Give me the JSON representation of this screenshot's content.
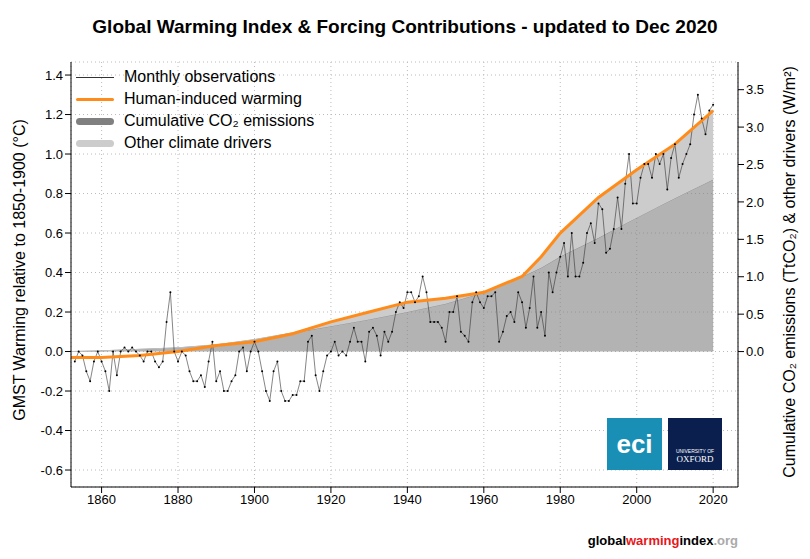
{
  "chart_data": {
    "type": "line",
    "title": "Global Warming Index & Forcing Contributions - updated to Dec 2020",
    "y_label": "GMST Warming relative to 1850-1900 (°C)",
    "y2_label": "Cumulative CO₂ emissions (TtCO₂) & other drivers (W/m²)",
    "xlim": [
      1852,
      2026.5
    ],
    "xticks": [
      1860,
      1880,
      1900,
      1920,
      1940,
      1960,
      1980,
      2000,
      2020
    ],
    "ylim": [
      -0.686,
      1.466
    ],
    "yticks": [
      -0.6,
      -0.4,
      -0.2,
      {
        "value": 0,
        "label": "0.0"
      },
      0.2,
      0.4,
      0.6,
      0.8,
      {
        "value": 1,
        "label": "1.0"
      },
      1.2,
      1.4
    ],
    "y2lim": [
      -1.81,
      3.87
    ],
    "y2ticks": [
      {
        "value": 0,
        "label": "0.0"
      },
      0.5,
      {
        "value": 1,
        "label": "1.0"
      },
      1.5,
      {
        "value": 2,
        "label": "2.0"
      },
      2.5,
      {
        "value": 3,
        "label": "3.0"
      },
      3.5
    ],
    "grid": true,
    "legend": "top-left",
    "stacked": true,
    "series": [
      {
        "name": "Monthly observations",
        "type": "line",
        "marker": "dot",
        "color": "#333333",
        "x": [
          1853,
          1854,
          1855,
          1856,
          1857,
          1858,
          1859,
          1860,
          1861,
          1862,
          1863,
          1864,
          1865,
          1866,
          1867,
          1868,
          1869,
          1870,
          1871,
          1872,
          1873,
          1874,
          1875,
          1876,
          1877,
          1878,
          1879,
          1880,
          1881,
          1882,
          1883,
          1884,
          1885,
          1886,
          1887,
          1888,
          1889,
          1890,
          1891,
          1892,
          1893,
          1894,
          1895,
          1896,
          1897,
          1898,
          1899,
          1900,
          1901,
          1902,
          1903,
          1904,
          1905,
          1906,
          1907,
          1908,
          1909,
          1910,
          1911,
          1912,
          1913,
          1914,
          1915,
          1916,
          1917,
          1918,
          1919,
          1920,
          1921,
          1922,
          1923,
          1924,
          1925,
          1926,
          1927,
          1928,
          1929,
          1930,
          1931,
          1932,
          1933,
          1934,
          1935,
          1936,
          1937,
          1938,
          1939,
          1940,
          1941,
          1942,
          1943,
          1944,
          1945,
          1946,
          1947,
          1948,
          1949,
          1950,
          1951,
          1952,
          1953,
          1954,
          1955,
          1956,
          1957,
          1958,
          1959,
          1960,
          1961,
          1962,
          1963,
          1964,
          1965,
          1966,
          1967,
          1968,
          1969,
          1970,
          1971,
          1972,
          1973,
          1974,
          1975,
          1976,
          1977,
          1978,
          1979,
          1980,
          1981,
          1982,
          1983,
          1984,
          1985,
          1986,
          1987,
          1988,
          1989,
          1990,
          1991,
          1992,
          1993,
          1994,
          1995,
          1996,
          1997,
          1998,
          1999,
          2000,
          2001,
          2002,
          2003,
          2004,
          2005,
          2006,
          2007,
          2008,
          2009,
          2010,
          2011,
          2012,
          2013,
          2014,
          2015,
          2016,
          2017,
          2018,
          2019,
          2020
        ],
        "values": [
          -0.05,
          0.0,
          -0.02,
          -0.1,
          -0.15,
          -0.05,
          0.0,
          -0.05,
          -0.1,
          -0.2,
          0.0,
          -0.12,
          0.0,
          0.02,
          0.0,
          0.02,
          0.0,
          -0.02,
          -0.05,
          0.0,
          0.0,
          -0.05,
          -0.08,
          -0.05,
          0.15,
          0.3,
          0.0,
          -0.05,
          0.0,
          -0.02,
          -0.1,
          -0.15,
          -0.15,
          -0.12,
          -0.18,
          -0.05,
          0.05,
          -0.15,
          -0.1,
          -0.2,
          -0.2,
          -0.15,
          -0.12,
          0.0,
          0.02,
          -0.1,
          0.0,
          0.05,
          0.0,
          -0.1,
          -0.2,
          -0.25,
          -0.1,
          -0.05,
          -0.2,
          -0.25,
          -0.25,
          -0.22,
          -0.22,
          -0.15,
          -0.15,
          0.05,
          0.08,
          -0.12,
          -0.2,
          -0.1,
          -0.02,
          0.0,
          0.05,
          -0.02,
          0.0,
          -0.02,
          0.05,
          0.12,
          0.05,
          0.05,
          -0.05,
          0.1,
          0.12,
          0.08,
          -0.02,
          0.1,
          0.05,
          0.1,
          0.2,
          0.25,
          0.22,
          0.3,
          0.3,
          0.25,
          0.28,
          0.38,
          0.3,
          0.15,
          0.15,
          0.15,
          0.12,
          0.05,
          0.2,
          0.2,
          0.28,
          0.1,
          0.08,
          0.05,
          0.25,
          0.3,
          0.25,
          0.22,
          0.28,
          0.28,
          0.3,
          0.05,
          0.1,
          0.18,
          0.2,
          0.15,
          0.3,
          0.25,
          0.12,
          0.22,
          0.38,
          0.12,
          0.2,
          0.08,
          0.4,
          0.3,
          0.4,
          0.48,
          0.55,
          0.38,
          0.6,
          0.38,
          0.38,
          0.45,
          0.6,
          0.65,
          0.55,
          0.75,
          0.72,
          0.5,
          0.52,
          0.62,
          0.78,
          0.62,
          0.85,
          1.0,
          0.75,
          0.75,
          0.88,
          0.95,
          0.95,
          0.88,
          1.0,
          0.95,
          1.0,
          0.82,
          0.98,
          1.05,
          0.88,
          0.95,
          1.0,
          1.05,
          1.2,
          1.3,
          1.18,
          1.1,
          1.22,
          1.25
        ]
      },
      {
        "name": "Human-induced warming",
        "type": "line",
        "color": "#ff8c1a",
        "x": [
          1852,
          1860,
          1870,
          1880,
          1890,
          1900,
          1910,
          1920,
          1930,
          1940,
          1950,
          1960,
          1970,
          1975,
          1980,
          1990,
          2000,
          2010,
          2020
        ],
        "values": [
          -0.03,
          -0.03,
          -0.02,
          0.0,
          0.03,
          0.05,
          0.09,
          0.15,
          0.2,
          0.25,
          0.27,
          0.3,
          0.38,
          0.48,
          0.6,
          0.78,
          0.92,
          1.05,
          1.22
        ]
      },
      {
        "name": "Cumulative CO₂ emissions",
        "type": "area",
        "axis": "y2",
        "color": "#808080",
        "x": [
          1852,
          1860,
          1870,
          1880,
          1890,
          1900,
          1910,
          1920,
          1930,
          1940,
          1950,
          1960,
          1970,
          1975,
          1980,
          1990,
          2000,
          2010,
          2020
        ],
        "values": [
          0,
          0.01,
          0.03,
          0.05,
          0.09,
          0.16,
          0.25,
          0.34,
          0.43,
          0.53,
          0.64,
          0.79,
          1.0,
          1.12,
          1.27,
          1.52,
          1.79,
          2.05,
          2.3
        ]
      },
      {
        "name": "Other climate drivers",
        "type": "area",
        "axis": "y2",
        "color": "#cccccc",
        "x": [
          1852,
          1860,
          1870,
          1880,
          1890,
          1900,
          1910,
          1920,
          1930,
          1940,
          1950,
          1960,
          1970,
          1975,
          1980,
          1990,
          2000,
          2010,
          2020
        ],
        "values": [
          0,
          0,
          0,
          0,
          0,
          0,
          0,
          0.06,
          0.1,
          0.13,
          0.07,
          0,
          0,
          0.15,
          0.31,
          0.54,
          0.64,
          0.72,
          0.92
        ]
      }
    ],
    "logos": [
      "eci",
      "UNIVERSITY OF",
      "OXFORD"
    ],
    "footer": [
      "global",
      "warming",
      "index",
      ".org"
    ]
  }
}
